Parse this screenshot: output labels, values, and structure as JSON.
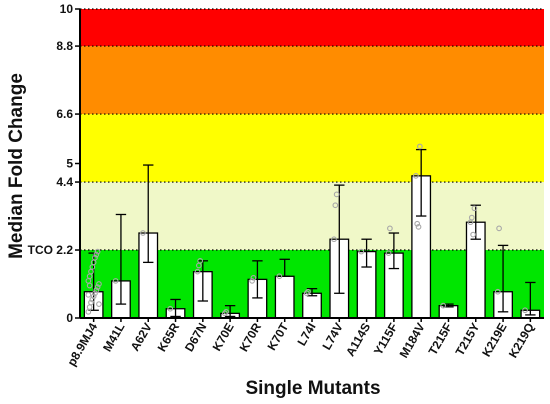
{
  "chart_data": {
    "type": "bar",
    "title": "",
    "xlabel": "Single Mutants",
    "ylabel": "Median Fold Change",
    "ylim": [
      0,
      10
    ],
    "yticks": [
      {
        "value": 0,
        "label": "0"
      },
      {
        "value": 2.2,
        "label": "TCO 2.2"
      },
      {
        "value": 4.4,
        "label": "4.4"
      },
      {
        "value": 5,
        "label": "5"
      },
      {
        "value": 6.6,
        "label": "6.6"
      },
      {
        "value": 8.8,
        "label": "8.8"
      },
      {
        "value": 10,
        "label": "10"
      }
    ],
    "threshold_lines": [
      2.2,
      4.4,
      6.6,
      8.8,
      10
    ],
    "bands": [
      {
        "from": 0,
        "to": 2.2,
        "color": "#00e600"
      },
      {
        "from": 2.2,
        "to": 4.4,
        "color": "#f0f8c8"
      },
      {
        "from": 4.4,
        "to": 6.6,
        "color": "#ffff00"
      },
      {
        "from": 6.6,
        "to": 8.8,
        "color": "#ff8c00"
      },
      {
        "from": 8.8,
        "to": 10,
        "color": "#ff0000"
      }
    ],
    "bar_fill": "#ffffff",
    "bar_stroke": "#000000",
    "point_color": "#a8a8a8",
    "categories": [
      "p8.9MJ4",
      "M41L",
      "A62V",
      "K65R",
      "D67N",
      "K70E",
      "K70R",
      "K70T",
      "L74I",
      "L74V",
      "A114S",
      "Y115F",
      "M184V",
      "T215F",
      "T215Y",
      "K219E",
      "K219Q"
    ],
    "values": [
      0.85,
      1.2,
      2.75,
      0.3,
      1.5,
      0.15,
      1.25,
      1.35,
      0.8,
      2.55,
      2.15,
      2.1,
      4.6,
      0.4,
      3.1,
      0.85,
      0.25
    ],
    "error_low": [
      0.25,
      0.45,
      1.8,
      0.05,
      0.55,
      0.05,
      0.65,
      1.35,
      0.72,
      0.8,
      1.65,
      1.6,
      3.3,
      0.36,
      2.55,
      0.2,
      0.1
    ],
    "error_high": [
      2.1,
      3.35,
      4.95,
      0.6,
      1.85,
      0.4,
      1.85,
      1.9,
      0.95,
      4.3,
      2.55,
      2.75,
      5.45,
      0.45,
      3.65,
      2.35,
      1.15
    ],
    "points": [
      [
        0.2,
        0.35,
        0.5,
        0.6,
        0.7,
        0.8,
        0.9,
        1.0,
        1.1,
        1.2,
        1.35,
        1.5,
        1.65,
        1.8,
        1.95,
        2.05,
        2.15,
        0.45,
        0.75,
        1.05
      ],
      [
        1.2
      ],
      [
        2.75
      ],
      [
        0.3
      ],
      [
        1.5,
        1.7,
        1.85
      ],
      [
        0.15,
        0.2
      ],
      [
        1.2,
        1.3
      ],
      [
        1.35
      ],
      [
        0.8,
        0.85
      ],
      [
        2.55,
        3.65,
        4.0
      ],
      [
        2.15
      ],
      [
        2.1,
        2.9
      ],
      [
        4.6,
        3.05,
        2.95,
        5.55
      ],
      [
        0.4
      ],
      [
        3.1,
        3.25,
        2.7,
        3.55
      ],
      [
        0.85,
        2.9
      ],
      [
        0.25
      ]
    ]
  }
}
